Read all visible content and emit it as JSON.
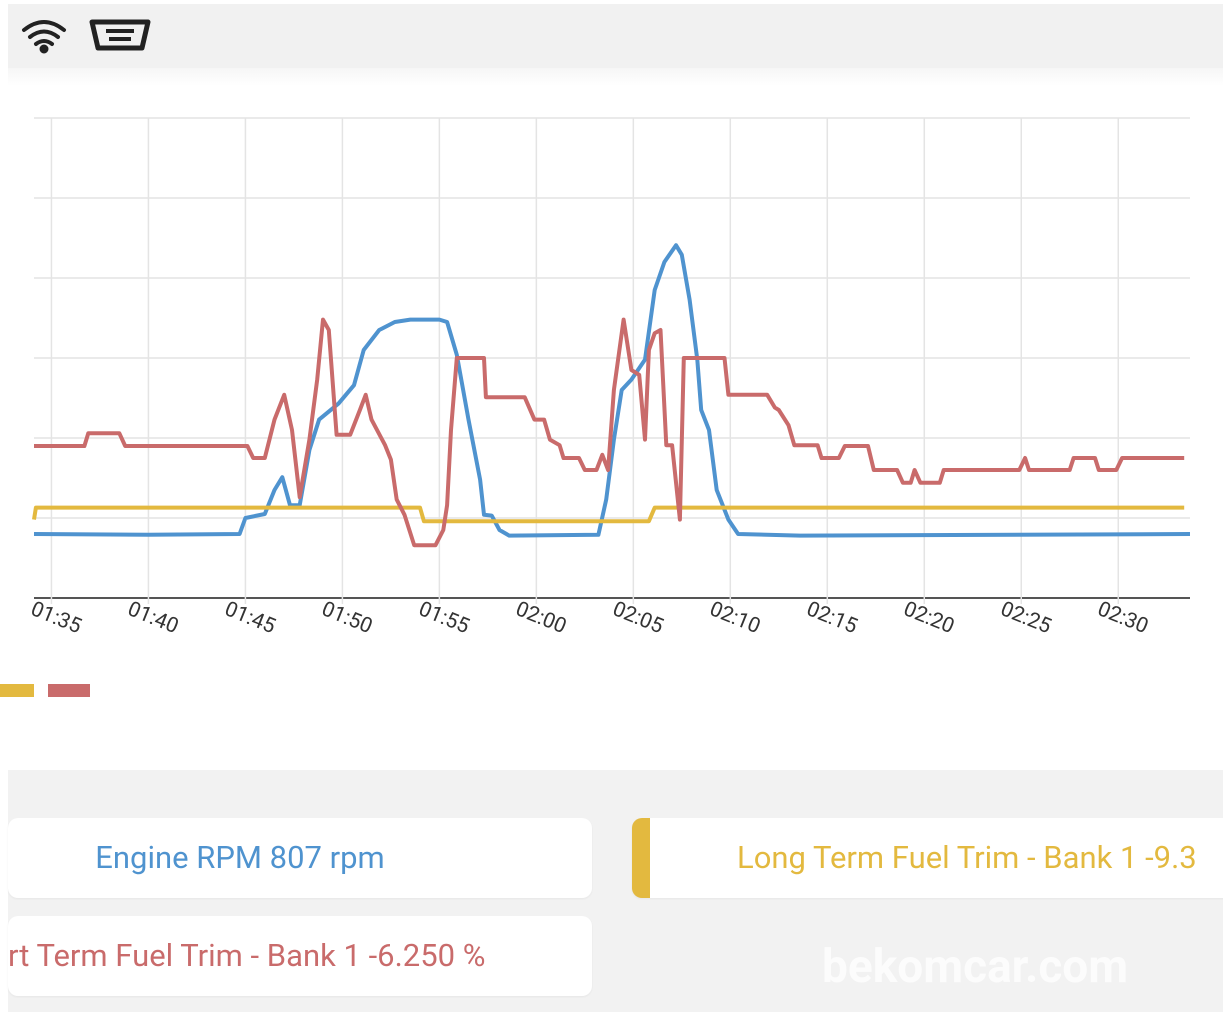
{
  "chart_data": {
    "type": "line",
    "xlim": [
      94.1,
      153.7
    ],
    "ylim": [
      0,
      6
    ],
    "yticks": [
      0,
      1,
      2,
      3,
      4,
      5,
      6
    ],
    "grid": true,
    "xticks": [
      {
        "value": 95,
        "label": "01:35"
      },
      {
        "value": 100,
        "label": "01:40"
      },
      {
        "value": 105,
        "label": "01:45"
      },
      {
        "value": 110,
        "label": "01:50"
      },
      {
        "value": 115,
        "label": "01:55"
      },
      {
        "value": 120,
        "label": "02:00"
      },
      {
        "value": 125,
        "label": "02:05"
      },
      {
        "value": 130,
        "label": "02:10"
      },
      {
        "value": 135,
        "label": "02:15"
      },
      {
        "value": 140,
        "label": "02:20"
      },
      {
        "value": 145,
        "label": "02:25"
      },
      {
        "value": 150,
        "label": "02:30"
      }
    ],
    "series": [
      {
        "color": "#4f93cf",
        "x": [
          94.1,
          100,
          104.7,
          105,
          106,
          106.5,
          106.9,
          107.3,
          107.8,
          108.3,
          108.8,
          109.8,
          110.6,
          111.1,
          111.9,
          112.7,
          113.5,
          115,
          115.4,
          115.9,
          116.5,
          117.1,
          117.3,
          117.7,
          118.1,
          118.6,
          123.2,
          123.6,
          124,
          124.4,
          124.9,
          125.6,
          126.1,
          126.6,
          127.2,
          127.5,
          127.9,
          128.3,
          128.5,
          128.9,
          129.3,
          129.9,
          130.4,
          133.6,
          153.7
        ],
        "values": [
          0.8,
          0.79,
          0.8,
          1,
          1.05,
          1.35,
          1.51,
          1.16,
          1.16,
          1.85,
          2.23,
          2.43,
          2.66,
          3.1,
          3.35,
          3.45,
          3.48,
          3.48,
          3.45,
          3.04,
          2.23,
          1.48,
          1.04,
          1.03,
          0.85,
          0.78,
          0.79,
          1.23,
          1.98,
          2.6,
          2.73,
          2.98,
          3.85,
          4.2,
          4.41,
          4.29,
          3.73,
          2.98,
          2.35,
          2.1,
          1.35,
          0.98,
          0.8,
          0.78,
          0.8
        ]
      },
      {
        "color": "#e3b93f",
        "x": [
          94.1,
          94.2,
          114,
          114.2,
          125.8,
          126.1,
          153.4
        ],
        "values": [
          0.98,
          1.13,
          1.13,
          0.96,
          0.96,
          1.13,
          1.13
        ]
      },
      {
        "color": "#c96b6b",
        "x": [
          94.1,
          96.7,
          96.9,
          98.5,
          98.8,
          105.1,
          105.4,
          106,
          106.5,
          107,
          107.4,
          107.8,
          108.3,
          108.7,
          109,
          109.3,
          109.7,
          110.4,
          110.9,
          111.2,
          111.5,
          112.2,
          112.5,
          112.8,
          113.2,
          113.7,
          114.8,
          115.2,
          115.4,
          115.6,
          115.9,
          117.3,
          117.4,
          119.4,
          119.9,
          120.4,
          120.7,
          121.2,
          121.4,
          122.2,
          122.5,
          123.1,
          123.4,
          123.7,
          124,
          124.5,
          124.9,
          125.3,
          125.6,
          125.8,
          126.1,
          126.4,
          126.7,
          127,
          127.4,
          127.6,
          129.7,
          129.9,
          131.9,
          132.3,
          132.5,
          133,
          133.3,
          134.5,
          134.7,
          135.6,
          135.9,
          137.1,
          137.4,
          138.6,
          138.9,
          139.3,
          139.5,
          139.8,
          140.8,
          141,
          144.9,
          145.2,
          145.4,
          147.5,
          147.7,
          148.8,
          149,
          149.9,
          150.2,
          153.4
        ],
        "values": [
          1.9,
          1.9,
          2.06,
          2.06,
          1.9,
          1.9,
          1.75,
          1.75,
          2.23,
          2.54,
          2.1,
          1.26,
          1.98,
          2.73,
          3.48,
          3.35,
          2.04,
          2.04,
          2.35,
          2.54,
          2.23,
          1.91,
          1.73,
          1.23,
          1.04,
          0.66,
          0.66,
          0.85,
          1.16,
          2.1,
          3,
          3,
          2.51,
          2.51,
          2.23,
          2.23,
          1.98,
          1.91,
          1.75,
          1.75,
          1.6,
          1.6,
          1.79,
          1.6,
          2.6,
          3.48,
          2.85,
          2.79,
          1.98,
          3.1,
          3.31,
          3.35,
          1.91,
          1.91,
          0.98,
          3,
          3,
          2.54,
          2.54,
          2.38,
          2.35,
          2.16,
          1.91,
          1.91,
          1.75,
          1.75,
          1.9,
          1.9,
          1.6,
          1.6,
          1.44,
          1.44,
          1.6,
          1.44,
          1.44,
          1.6,
          1.6,
          1.75,
          1.6,
          1.6,
          1.75,
          1.75,
          1.6,
          1.6,
          1.75,
          1.75
        ]
      }
    ]
  },
  "cards": [
    {
      "text": "Engine RPM 807 rpm",
      "series": 0
    },
    {
      "text": "Long Term Fuel Trim - Bank 1 -9.3",
      "series": 1
    },
    {
      "text": "rt Term Fuel Trim - Bank 1 -6.250 %",
      "series": 2
    }
  ],
  "watermark": "bekomcar.com"
}
